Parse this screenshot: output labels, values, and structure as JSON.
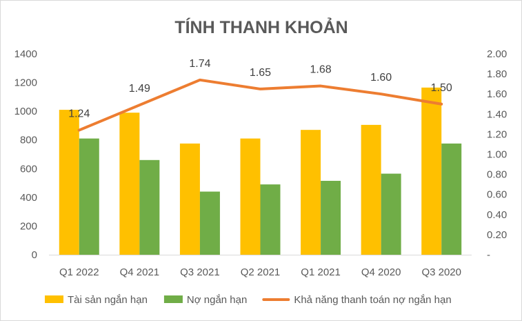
{
  "chart_data": {
    "type": "bar",
    "title": "TÍNH THANH KHOẢN",
    "categories": [
      "Q1 2022",
      "Q4 2021",
      "Q3 2021",
      "Q2 2021",
      "Q1 2021",
      "Q4 2020",
      "Q3 2020"
    ],
    "series": [
      {
        "name": "Tài sản ngắn hạn",
        "type": "bar",
        "axis": "left",
        "color": "#FFC000",
        "values": [
          1010,
          990,
          775,
          810,
          870,
          905,
          1165
        ]
      },
      {
        "name": "Nợ ngắn hạn",
        "type": "bar",
        "axis": "left",
        "color": "#70AD47",
        "values": [
          810,
          660,
          440,
          490,
          515,
          565,
          775
        ]
      },
      {
        "name": "Khả năng thanh toán nợ ngắn hạn",
        "type": "line",
        "axis": "right",
        "color": "#ED7D31",
        "values": [
          1.24,
          1.49,
          1.74,
          1.65,
          1.68,
          1.6,
          1.5
        ],
        "labels": [
          "1.24",
          "1.49",
          "1.74",
          "1.65",
          "1.68",
          "1.60",
          "1.50"
        ]
      }
    ],
    "y_left": {
      "ylim": [
        0,
        1400
      ],
      "ticks": [
        "0",
        "200",
        "400",
        "600",
        "800",
        "1000",
        "1200",
        "1400"
      ]
    },
    "y_right": {
      "ylim": [
        0,
        2.0
      ],
      "ticks": [
        "-",
        "0.20",
        "0.40",
        "0.60",
        "0.80",
        "1.00",
        "1.20",
        "1.40",
        "1.60",
        "1.80",
        "2.00"
      ]
    },
    "grid": false,
    "legend": "bottom"
  }
}
